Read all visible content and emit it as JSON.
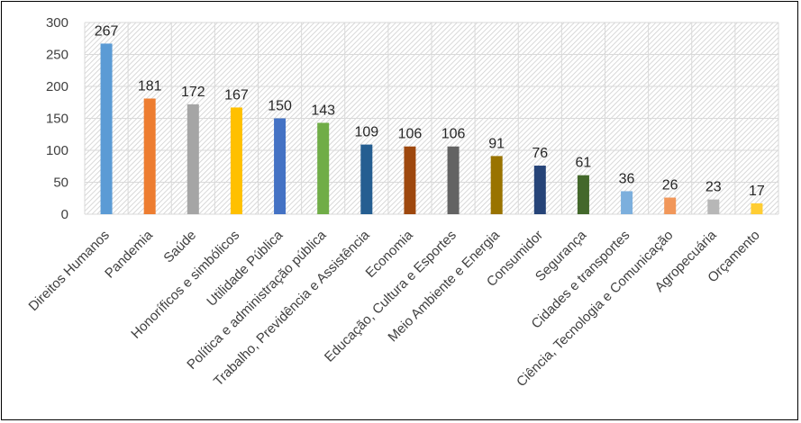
{
  "chart_data": {
    "type": "bar",
    "title": "",
    "xlabel": "",
    "ylabel": "",
    "ylim": [
      0,
      300
    ],
    "yticks": [
      0,
      50,
      100,
      150,
      200,
      250,
      300
    ],
    "grid": true,
    "legend": "none",
    "categories": [
      "Direitos Humanos",
      "Pandemia",
      "Saúde",
      "Honoríficos e simbólicos",
      "Utilidade Pública",
      "Política e administração pública",
      "Trabalho, Previdência e Assistência",
      "Economia",
      "Educação, Cultura e Esportes",
      "Meio Ambiente e Energia",
      "Consumidor",
      "Segurança",
      "Cidades e transportes",
      "Ciência, Tecnologia e Comunicação",
      "Agropecuária",
      "Orçamento"
    ],
    "values": [
      267,
      181,
      172,
      167,
      150,
      143,
      109,
      106,
      106,
      91,
      76,
      61,
      36,
      26,
      23,
      17
    ],
    "colors": [
      "#5B9BD5",
      "#ED7D31",
      "#A5A5A5",
      "#FFC000",
      "#4472C4",
      "#70AD47",
      "#255E91",
      "#9E480E",
      "#636363",
      "#997300",
      "#264478",
      "#43682B",
      "#7CAFDD",
      "#F1975A",
      "#B7B7B7",
      "#FFCD33"
    ]
  }
}
